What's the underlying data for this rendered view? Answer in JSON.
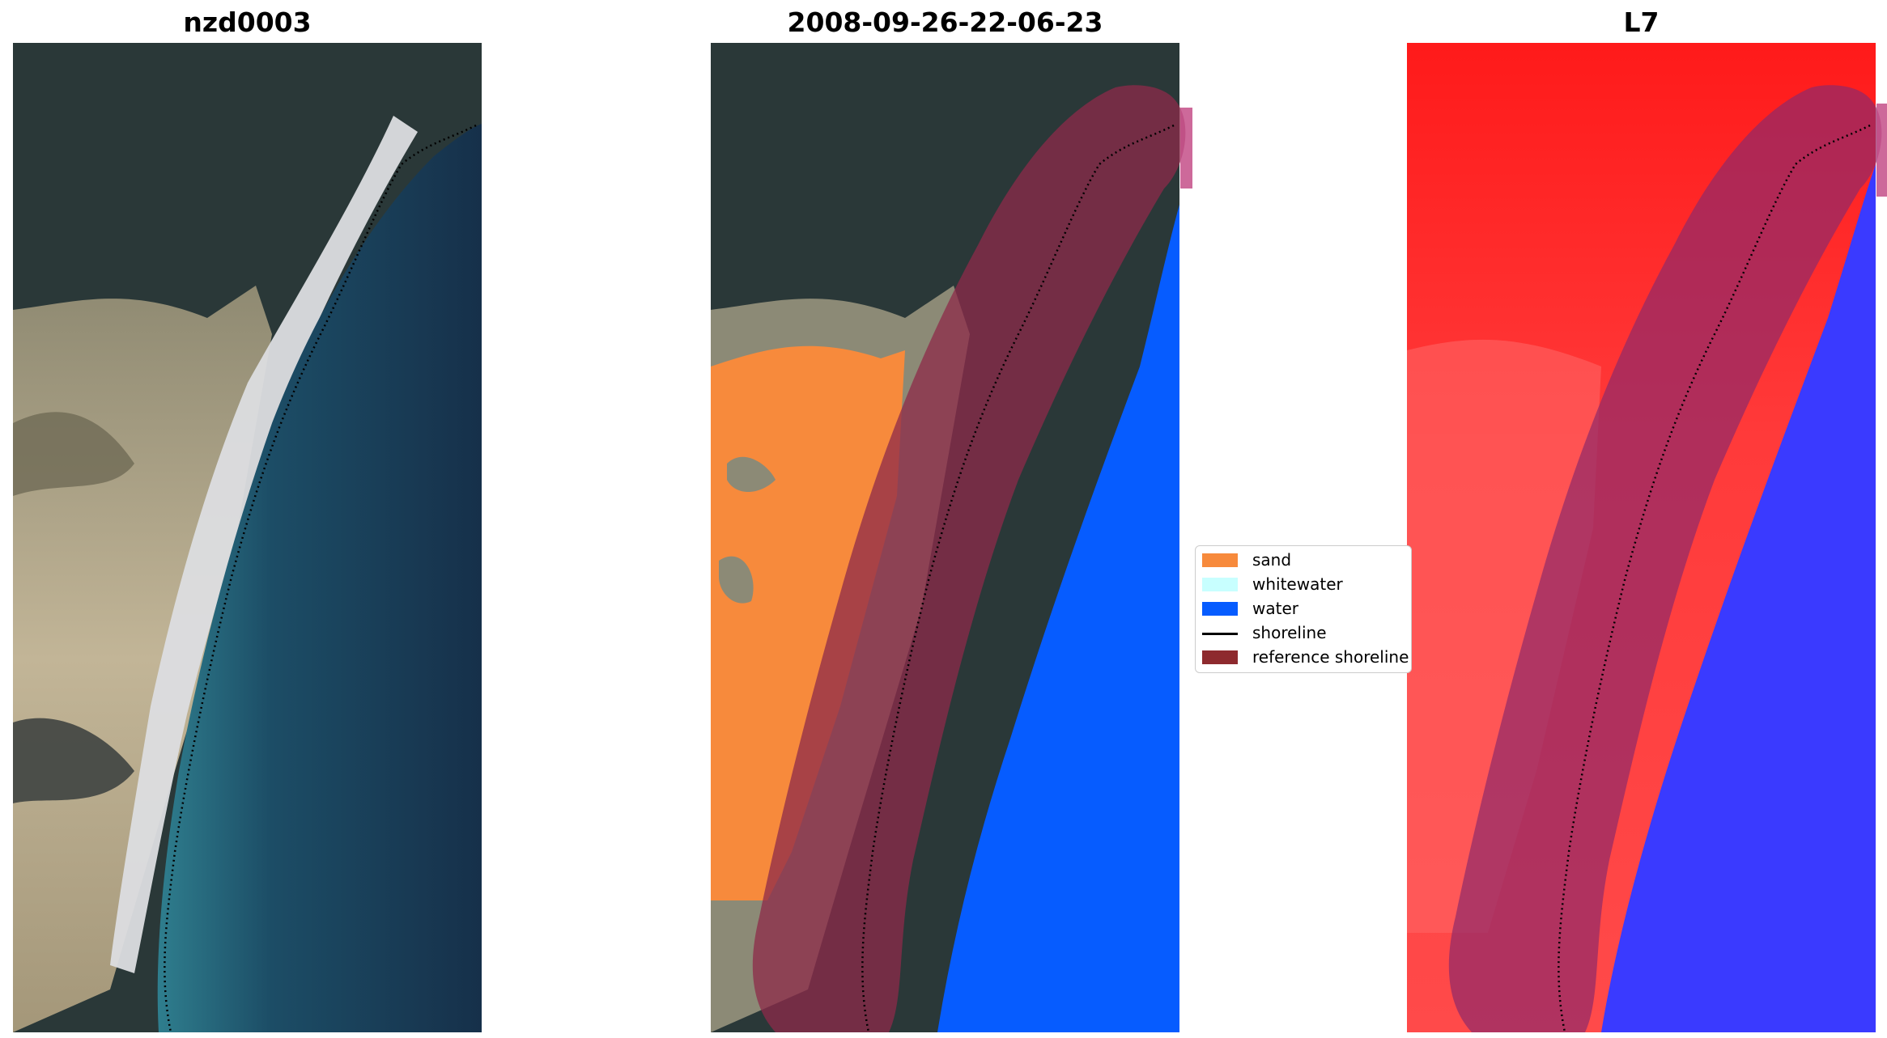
{
  "titles": {
    "left": "nzd0003",
    "middle": "2008-09-26-22-06-23",
    "right": "L7"
  },
  "legend": {
    "items": [
      {
        "label": "sand",
        "color": "#f78a3c",
        "kind": "patch"
      },
      {
        "label": "whitewater",
        "color": "#c8ffff",
        "kind": "patch"
      },
      {
        "label": "water",
        "color": "#065cff",
        "kind": "patch"
      },
      {
        "label": "shoreline",
        "color": "#000000",
        "kind": "line"
      },
      {
        "label": "reference shoreline",
        "color": "#8e2a2e",
        "kind": "patch"
      }
    ]
  },
  "colors": {
    "land_dark": "#2a3a3a",
    "land_sand": "#b0a78e",
    "ocean_shallow": "#2f7e8e",
    "ocean_deep": "#17324d",
    "sand_class": "#f78a3c",
    "water_class": "#065cff",
    "buffer_overlay": "#8e2a4a",
    "index_land": "#ff2020",
    "index_water": "#2a2aff"
  }
}
